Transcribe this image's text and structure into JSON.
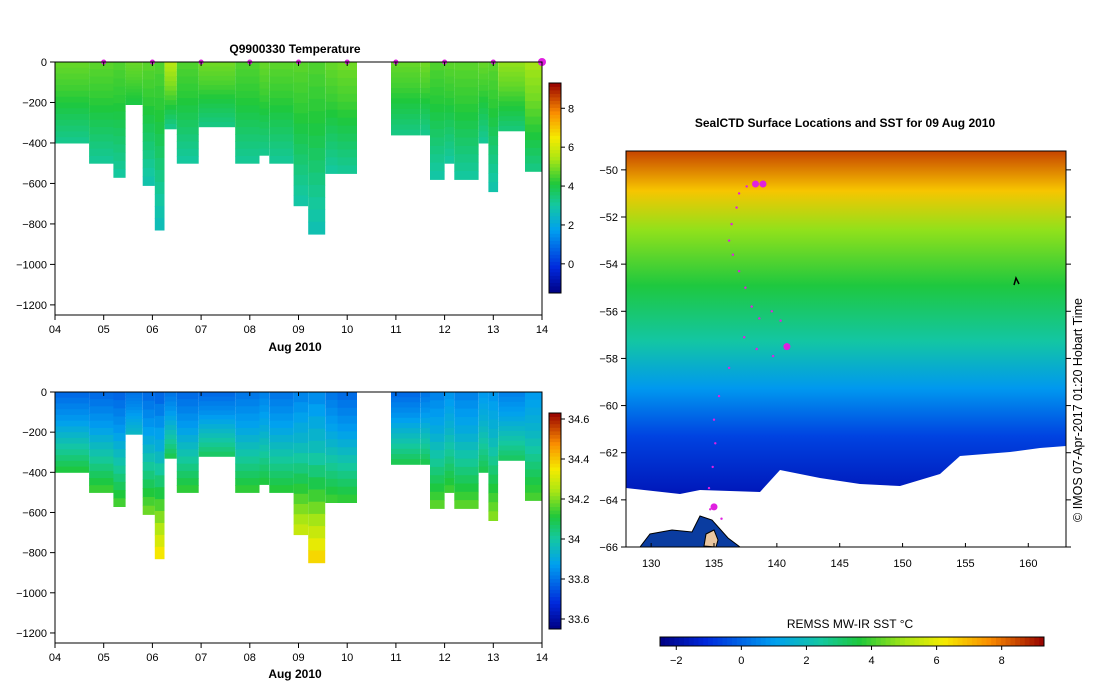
{
  "chart_data": [
    {
      "id": "temperature",
      "type": "heatmap",
      "title": "Q9900330  Temperature",
      "xlabel": "Aug 2010",
      "x_tick_labels": [
        "04",
        "05",
        "06",
        "07",
        "08",
        "09",
        "10",
        "11",
        "12",
        "13",
        "14"
      ],
      "x_range_days": [
        4,
        14
      ],
      "ylim": [
        -1250,
        0
      ],
      "y_tick_values": [
        0,
        -200,
        -400,
        -600,
        -800,
        -1000,
        -1200
      ],
      "y_tick_labels": [
        "0",
        "−200",
        "−400",
        "−600",
        "−800",
        "−1000",
        "−1200"
      ],
      "profile_markers": [
        5,
        6,
        7,
        8,
        9,
        10,
        11,
        12,
        13,
        14
      ],
      "colorbar": {
        "range": [
          -1.5,
          9.3
        ],
        "tick_values": [
          0,
          2,
          4,
          6,
          8
        ],
        "tick_labels": [
          "0",
          "2",
          "4",
          "6",
          "8"
        ]
      },
      "profiles": [
        {
          "start": 4.0,
          "end": 4.7,
          "depth": 400,
          "surface": 4.8,
          "deep": 3.2
        },
        {
          "start": 4.7,
          "end": 5.2,
          "depth": 500,
          "surface": 4.7,
          "deep": 3.1
        },
        {
          "start": 5.2,
          "end": 5.45,
          "depth": 570,
          "surface": 4.6,
          "deep": 3.0
        },
        {
          "start": 5.45,
          "end": 5.8,
          "depth": 210,
          "surface": 4.8,
          "deep": 4.0
        },
        {
          "start": 5.8,
          "end": 6.05,
          "depth": 610,
          "surface": 4.7,
          "deep": 2.8
        },
        {
          "start": 6.05,
          "end": 6.25,
          "depth": 830,
          "surface": 4.6,
          "deep": 2.6
        },
        {
          "start": 6.25,
          "end": 6.5,
          "depth": 330,
          "surface": 5.6,
          "deep": 3.2
        },
        {
          "start": 6.5,
          "end": 6.95,
          "depth": 500,
          "surface": 4.6,
          "deep": 3.0
        },
        {
          "start": 6.95,
          "end": 7.7,
          "depth": 320,
          "surface": 4.9,
          "deep": 3.3
        },
        {
          "start": 7.7,
          "end": 8.2,
          "depth": 500,
          "surface": 4.6,
          "deep": 3.1
        },
        {
          "start": 8.2,
          "end": 8.4,
          "depth": 460,
          "surface": 4.8,
          "deep": 3.2
        },
        {
          "start": 8.4,
          "end": 8.9,
          "depth": 500,
          "surface": 4.7,
          "deep": 3.1
        },
        {
          "start": 8.9,
          "end": 9.2,
          "depth": 710,
          "surface": 4.7,
          "deep": 2.9
        },
        {
          "start": 9.2,
          "end": 9.55,
          "depth": 850,
          "surface": 4.6,
          "deep": 2.7
        },
        {
          "start": 9.55,
          "end": 9.8,
          "depth": 550,
          "surface": 4.8,
          "deep": 3.0
        },
        {
          "start": 9.8,
          "end": 10.2,
          "depth": 550,
          "surface": 4.9,
          "deep": 3.1
        },
        {
          "start": 10.9,
          "end": 11.5,
          "depth": 360,
          "surface": 4.8,
          "deep": 3.3
        },
        {
          "start": 11.5,
          "end": 11.7,
          "depth": 360,
          "surface": 4.9,
          "deep": 3.2
        },
        {
          "start": 11.7,
          "end": 12.0,
          "depth": 580,
          "surface": 4.6,
          "deep": 2.9
        },
        {
          "start": 12.0,
          "end": 12.2,
          "depth": 500,
          "surface": 4.7,
          "deep": 3.0
        },
        {
          "start": 12.2,
          "end": 12.7,
          "depth": 580,
          "surface": 4.7,
          "deep": 3.0
        },
        {
          "start": 12.7,
          "end": 12.9,
          "depth": 400,
          "surface": 4.8,
          "deep": 3.1
        },
        {
          "start": 12.9,
          "end": 13.1,
          "depth": 640,
          "surface": 4.7,
          "deep": 2.8
        },
        {
          "start": 13.1,
          "end": 13.65,
          "depth": 340,
          "surface": 5.2,
          "deep": 3.4
        },
        {
          "start": 13.65,
          "end": 14.05,
          "depth": 540,
          "surface": 5.4,
          "deep": 3.3
        }
      ]
    },
    {
      "id": "salinity",
      "type": "heatmap",
      "title": "",
      "xlabel": "Aug 2010",
      "x_tick_labels": [
        "04",
        "05",
        "06",
        "07",
        "08",
        "09",
        "10",
        "11",
        "12",
        "13",
        "14"
      ],
      "x_range_days": [
        4,
        14
      ],
      "ylim": [
        -1250,
        0
      ],
      "y_tick_values": [
        0,
        -200,
        -400,
        -600,
        -800,
        -1000,
        -1200
      ],
      "y_tick_labels": [
        "0",
        "−200",
        "−400",
        "−600",
        "−800",
        "−1000",
        "−1200"
      ],
      "colorbar": {
        "range": [
          33.55,
          34.63
        ],
        "tick_values": [
          33.6,
          33.8,
          34,
          34.2,
          34.4,
          34.6
        ],
        "tick_labels": [
          "33.6",
          "33.8",
          "34",
          "34.2",
          "34.4",
          "34.6"
        ]
      },
      "profiles": [
        {
          "start": 4.0,
          "end": 4.7,
          "depth": 400,
          "surface": 33.78,
          "deep": 34.12
        },
        {
          "start": 4.7,
          "end": 5.2,
          "depth": 500,
          "surface": 33.78,
          "deep": 34.15
        },
        {
          "start": 5.2,
          "end": 5.45,
          "depth": 570,
          "surface": 33.77,
          "deep": 34.16
        },
        {
          "start": 5.45,
          "end": 5.8,
          "depth": 210,
          "surface": 33.8,
          "deep": 33.95
        },
        {
          "start": 5.8,
          "end": 6.05,
          "depth": 610,
          "surface": 33.78,
          "deep": 34.2
        },
        {
          "start": 6.05,
          "end": 6.25,
          "depth": 830,
          "surface": 33.77,
          "deep": 34.38
        },
        {
          "start": 6.25,
          "end": 6.5,
          "depth": 330,
          "surface": 33.8,
          "deep": 34.1
        },
        {
          "start": 6.5,
          "end": 6.95,
          "depth": 500,
          "surface": 33.78,
          "deep": 34.14
        },
        {
          "start": 6.95,
          "end": 7.7,
          "depth": 320,
          "surface": 33.78,
          "deep": 34.08
        },
        {
          "start": 7.7,
          "end": 8.2,
          "depth": 500,
          "surface": 33.8,
          "deep": 34.14
        },
        {
          "start": 8.2,
          "end": 8.4,
          "depth": 460,
          "surface": 33.82,
          "deep": 34.12
        },
        {
          "start": 8.4,
          "end": 8.9,
          "depth": 500,
          "surface": 33.8,
          "deep": 34.13
        },
        {
          "start": 8.9,
          "end": 9.2,
          "depth": 710,
          "surface": 33.82,
          "deep": 34.3
        },
        {
          "start": 9.2,
          "end": 9.55,
          "depth": 850,
          "surface": 33.83,
          "deep": 34.4
        },
        {
          "start": 9.55,
          "end": 9.8,
          "depth": 550,
          "surface": 33.8,
          "deep": 34.15
        },
        {
          "start": 9.8,
          "end": 10.2,
          "depth": 550,
          "surface": 33.78,
          "deep": 34.14
        },
        {
          "start": 10.9,
          "end": 11.5,
          "depth": 360,
          "surface": 33.78,
          "deep": 34.1
        },
        {
          "start": 11.5,
          "end": 11.7,
          "depth": 360,
          "surface": 33.8,
          "deep": 34.1
        },
        {
          "start": 11.7,
          "end": 12.0,
          "depth": 580,
          "surface": 33.82,
          "deep": 34.18
        },
        {
          "start": 12.0,
          "end": 12.2,
          "depth": 500,
          "surface": 33.85,
          "deep": 34.15
        },
        {
          "start": 12.2,
          "end": 12.7,
          "depth": 580,
          "surface": 33.82,
          "deep": 34.18
        },
        {
          "start": 12.7,
          "end": 12.9,
          "depth": 400,
          "surface": 33.86,
          "deep": 34.1
        },
        {
          "start": 12.9,
          "end": 13.1,
          "depth": 640,
          "surface": 33.85,
          "deep": 34.22
        },
        {
          "start": 13.1,
          "end": 13.65,
          "depth": 340,
          "surface": 33.82,
          "deep": 34.08
        },
        {
          "start": 13.65,
          "end": 14.05,
          "depth": 540,
          "surface": 33.86,
          "deep": 34.16
        }
      ]
    },
    {
      "id": "sst_map",
      "type": "heatmap",
      "title": "SealCTD Surface Locations and SST for 09 Aug 2010",
      "xlim": [
        128,
        163
      ],
      "ylim": [
        -66,
        -49.2
      ],
      "x_tick_values": [
        130,
        135,
        140,
        145,
        150,
        155,
        160
      ],
      "x_tick_labels": [
        "130",
        "135",
        "140",
        "145",
        "150",
        "155",
        "160"
      ],
      "y_tick_values": [
        -50,
        -52,
        -54,
        -56,
        -58,
        -60,
        -62,
        -64,
        -66
      ],
      "y_tick_labels": [
        "−50",
        "−52",
        "−54",
        "−56",
        "−58",
        "−60",
        "−62",
        "−64",
        "−66"
      ],
      "colorbar": {
        "label": "REMSS MW-IR SST °C",
        "range": [
          -2.5,
          9.3
        ],
        "tick_values": [
          -2,
          0,
          2,
          4,
          6,
          8
        ],
        "tick_labels": [
          "−2",
          "0",
          "2",
          "4",
          "6",
          "8"
        ]
      },
      "credit": "©  IMOS 07-Apr-2017 01:20 Hobart Time",
      "track_points": [
        {
          "lon": 138.7,
          "lat": -50.6
        },
        {
          "lon": 138.2,
          "lat": -50.6
        },
        {
          "lon": 137.6,
          "lat": -50.7
        },
        {
          "lon": 137.0,
          "lat": -51.0
        },
        {
          "lon": 136.8,
          "lat": -51.6
        },
        {
          "lon": 136.4,
          "lat": -52.3
        },
        {
          "lon": 136.2,
          "lat": -53.0
        },
        {
          "lon": 136.5,
          "lat": -53.6
        },
        {
          "lon": 137.0,
          "lat": -54.3
        },
        {
          "lon": 137.5,
          "lat": -55.0
        },
        {
          "lon": 138.0,
          "lat": -55.8
        },
        {
          "lon": 138.6,
          "lat": -56.3
        },
        {
          "lon": 139.6,
          "lat": -56.0
        },
        {
          "lon": 140.3,
          "lat": -56.4
        },
        {
          "lon": 140.8,
          "lat": -57.4
        },
        {
          "lon": 139.7,
          "lat": -57.9
        },
        {
          "lon": 138.4,
          "lat": -57.6
        },
        {
          "lon": 137.4,
          "lat": -57.1
        },
        {
          "lon": 136.2,
          "lat": -58.4
        },
        {
          "lon": 135.4,
          "lat": -59.6
        },
        {
          "lon": 135.0,
          "lat": -60.6
        },
        {
          "lon": 135.1,
          "lat": -61.6
        },
        {
          "lon": 134.9,
          "lat": -62.6
        },
        {
          "lon": 134.6,
          "lat": -63.5
        },
        {
          "lon": 134.7,
          "lat": -64.4
        },
        {
          "lon": 135.6,
          "lat": -64.8
        }
      ],
      "highlight_points": [
        {
          "lon": 138.3,
          "lat": -50.6
        },
        {
          "lon": 138.9,
          "lat": -50.6
        },
        {
          "lon": 140.8,
          "lat": -57.5
        },
        {
          "lon": 135.0,
          "lat": -64.3
        }
      ]
    }
  ]
}
